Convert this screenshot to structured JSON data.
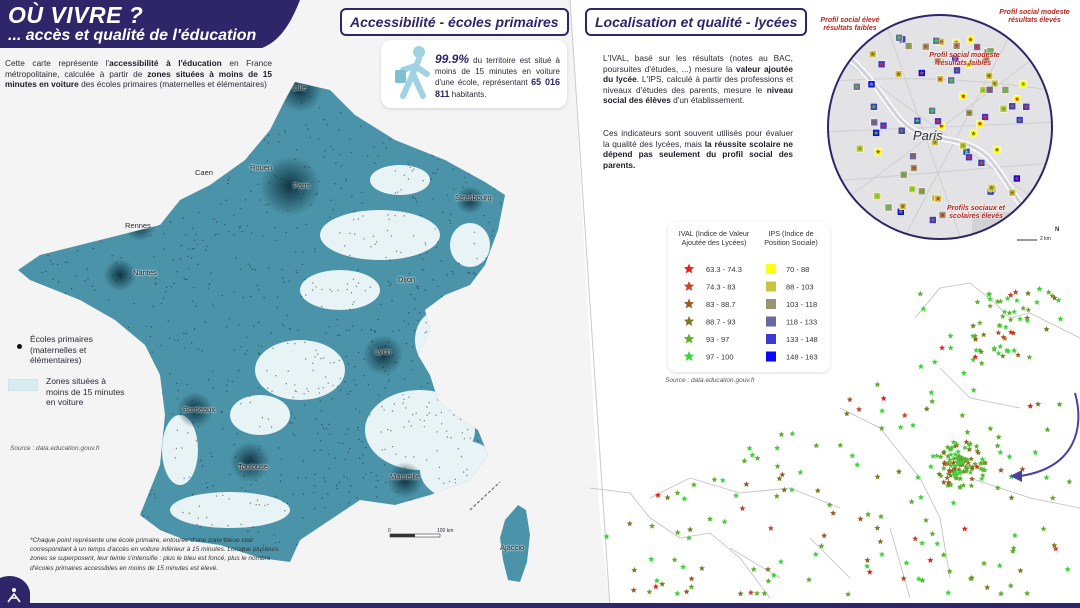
{
  "header": {
    "title": "OÙ VIVRE ?",
    "subtitle": "... accès et qualité de l'éducation"
  },
  "sections": {
    "left_title": "Accessibilité - écoles primaires",
    "right_title": "Localisation et qualité - lycées"
  },
  "intro": {
    "p1": "Cette carte représente l'",
    "p1_bold1": "accessibilité à l'éducation",
    "p1_mid": " en France métropolitaine, calculée à partir de ",
    "p1_bold2": "zones situées à moins de 15 minutes en voiture",
    "p1_end": " des écoles primaires (maternelles et élémentaires)"
  },
  "callout": {
    "percent": "99.9%",
    "text": " du territoire est situé à moins de 15 minutes en voiture d'une école, représentant ",
    "inhabitants": "65 016 811",
    "suffix": " habitants."
  },
  "ival_text": {
    "a": "L'IVAL, basé sur les résultats (notes au BAC, poursuites d'études, ...) mesure la ",
    "a_bold": "valeur ajoutée du lycée",
    "b": ". L'IPS, calculé à partir des professions et niveaux d'études des parents, mesure le ",
    "b_bold": "niveau social des élèves",
    "c": " d'un établissement.",
    "d": "Ces indicateurs sont souvent utilisés pour évaluer la qualité des lycées, mais ",
    "d_bold": "la réussite scolaire ne dépend pas seulement du profil social des parents."
  },
  "legend_left": {
    "ecoles": "Écoles primaires (maternelles et élémentaires)",
    "zones": "Zones situées à moins de 15 minutes en voiture"
  },
  "sources": {
    "left": "Source : data.education.gouv.fr",
    "right": "Source : data.education.gouv.fr"
  },
  "footnote": "*Chaque point représente une école primaire, entourée d'une zone bleue clair correspondant à un temps d'accès en voiture inférieur à 15 minutes. Lorsque plusieurs zones se superposent, leur teinte s'intensifie : plus le bleu est foncé, plus le nombre d'écoles primaires accessibles en moins de 15 minutes est élevé.",
  "legend_ival_ips": {
    "ival_header": "IVAL (Indice de Valeur Ajoutée des Lycées)",
    "ips_header": "IPS (Indice de Position Sociale)",
    "ival": [
      {
        "range": "63.3 - 74.3",
        "color": "#e0261b"
      },
      {
        "range": "74.3 - 83",
        "color": "#c4452a"
      },
      {
        "range": "83 - 88.7",
        "color": "#9a5a2a"
      },
      {
        "range": "88.7 - 93",
        "color": "#7a7a25"
      },
      {
        "range": "93 - 97",
        "color": "#5fae2a"
      },
      {
        "range": "97 - 100",
        "color": "#3cd33a"
      }
    ],
    "ips": [
      {
        "range": "70 - 88",
        "color": "#ffff1a"
      },
      {
        "range": "88 - 103",
        "color": "#c8c442"
      },
      {
        "range": "103 - 118",
        "color": "#9a9570"
      },
      {
        "range": "118 - 133",
        "color": "#6a6aa0"
      },
      {
        "range": "133 - 148",
        "color": "#3a3ad0"
      },
      {
        "range": "148 - 163",
        "color": "#0a0af5"
      }
    ]
  },
  "cities": {
    "lille": "Lille",
    "paris": "Paris",
    "rouen": "Rouen",
    "caen": "Caen",
    "rennes": "Rennes",
    "nantes": "Nantes",
    "strasbourg": "Strasbourg",
    "dijon": "Dijon",
    "lyon": "Lyon",
    "bordeaux": "Bordeaux",
    "toulouse": "Toulouse",
    "marseille": "Marseille",
    "ajaccio": "Ajaccio"
  },
  "paris_map": {
    "label": "Paris",
    "annot_tl": "Profil social élevé résultats faibles",
    "annot_tr": "Profil social modeste résultats élevés",
    "annot_mid": "Profil social modeste résultats faibles",
    "annot_bot": "Profils sociaux et scolaires élevés",
    "scale": "2 km",
    "north": "N"
  },
  "scale_left": {
    "zero": "0",
    "end": "100 km"
  },
  "colors": {
    "accent": "#2e2668",
    "france_fill": "#3f8ea3",
    "zone_light": "#d6ecef",
    "arrow": "#4b3fa0"
  }
}
